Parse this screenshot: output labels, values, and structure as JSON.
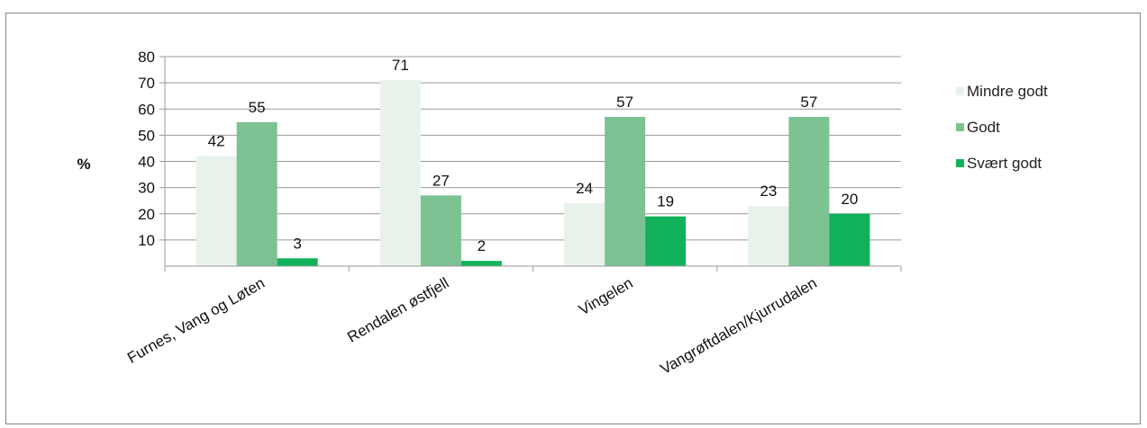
{
  "chart_data": {
    "type": "bar",
    "ylabel": "%",
    "ylim": [
      0,
      80
    ],
    "yticks": [
      10,
      20,
      30,
      40,
      50,
      60,
      70,
      80
    ],
    "grid": true,
    "legend_position": "right",
    "categories": [
      "Furnes, Vang og Løten",
      "Rendalen østfjell",
      "Vingelen",
      "Vangrøftdalen/Kjurrudalen"
    ],
    "series": [
      {
        "name": "Mindre godt",
        "color": "#e8f2ea",
        "values": [
          42,
          71,
          24,
          23
        ]
      },
      {
        "name": "Godt",
        "color": "#7cc292",
        "values": [
          55,
          27,
          57,
          57
        ]
      },
      {
        "name": "Svært godt",
        "color": "#10b15a",
        "values": [
          3,
          2,
          19,
          20
        ]
      }
    ]
  }
}
